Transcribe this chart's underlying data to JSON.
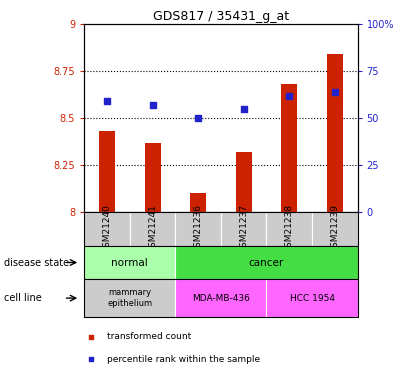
{
  "title": "GDS817 / 35431_g_at",
  "samples": [
    "GSM21240",
    "GSM21241",
    "GSM21236",
    "GSM21237",
    "GSM21238",
    "GSM21239"
  ],
  "bar_values": [
    8.43,
    8.37,
    8.1,
    8.32,
    8.68,
    8.84
  ],
  "percentile_values": [
    59,
    57,
    50,
    55,
    62,
    64
  ],
  "bar_color": "#cc2200",
  "dot_color": "#2222cc",
  "ylim_left": [
    8.0,
    9.0
  ],
  "ylim_right": [
    0,
    100
  ],
  "yticks_left": [
    8.0,
    8.25,
    8.5,
    8.75,
    9.0
  ],
  "yticks_right": [
    0,
    25,
    50,
    75,
    100
  ],
  "ytick_labels_left": [
    "8",
    "8.25",
    "8.5",
    "8.75",
    "9"
  ],
  "ytick_labels_right": [
    "0",
    "25",
    "50",
    "75",
    "100%"
  ],
  "dotted_lines": [
    8.25,
    8.5,
    8.75
  ],
  "normal_color": "#aaffaa",
  "cancer_color": "#44dd44",
  "mammary_color": "#cccccc",
  "mda_color": "#ff66ff",
  "hcc_color": "#ff66ff",
  "xtick_bg": "#cccccc",
  "legend_items": [
    {
      "label": "transformed count",
      "color": "#cc2200"
    },
    {
      "label": "percentile rank within the sample",
      "color": "#2222cc"
    }
  ],
  "disease_state_text": "disease state",
  "cell_line_text": "cell line"
}
